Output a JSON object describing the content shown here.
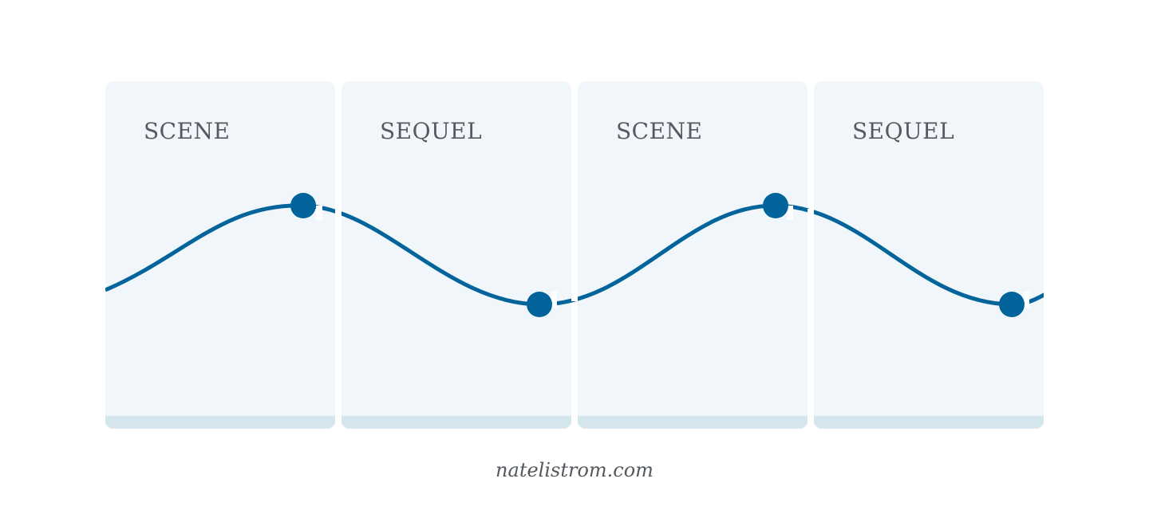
{
  "panels": [
    {
      "label": "SCENE"
    },
    {
      "label": "SEQUEL"
    },
    {
      "label": "SCENE"
    },
    {
      "label": "SEQUEL"
    }
  ],
  "footer": {
    "text": "natelistrom.com"
  },
  "colors": {
    "panel_fill": "#f0f6f9",
    "panel_base": "#d6e6ee",
    "curve": "#02649a",
    "label_text": "#555a60"
  }
}
